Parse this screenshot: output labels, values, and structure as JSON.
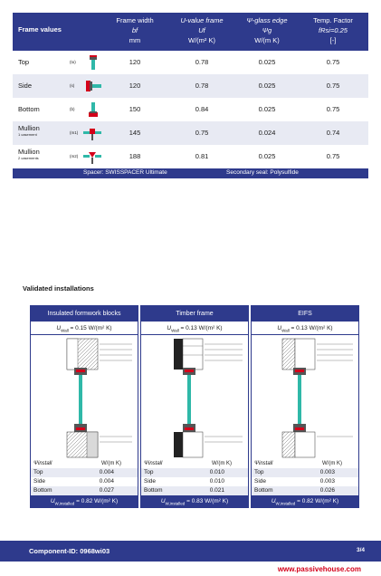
{
  "frame_table": {
    "header": {
      "label": "Frame values",
      "columns": [
        {
          "title": "Frame width",
          "symbol": "bf",
          "unit": "mm"
        },
        {
          "title": "U-value frame",
          "symbol": "Uf",
          "unit": "W/(m² K)"
        },
        {
          "title": "Ψ-glass edge",
          "symbol": "Ψg",
          "unit": "W/(m K)"
        },
        {
          "title": "Temp. Factor",
          "symbol": "fRsi=0.25",
          "unit": "[-]"
        }
      ]
    },
    "rows": [
      {
        "name": "Top",
        "code": "(to)",
        "width": "120",
        "uf": "0.78",
        "psi": "0.025",
        "temp": "0.75"
      },
      {
        "name": "Side",
        "code": "(s)",
        "width": "120",
        "uf": "0.78",
        "psi": "0.025",
        "temp": "0.75"
      },
      {
        "name": "Bottom",
        "code": "(b)",
        "width": "150",
        "uf": "0.84",
        "psi": "0.025",
        "temp": "0.75"
      },
      {
        "name": "Mullion",
        "sub": "1 casement",
        "code": "(m1)",
        "width": "145",
        "uf": "0.75",
        "psi": "0.024",
        "temp": "0.74"
      },
      {
        "name": "Mullion",
        "sub": "2 casements",
        "code": "(m2)",
        "width": "188",
        "uf": "0.81",
        "psi": "0.025",
        "temp": "0.75"
      }
    ],
    "footer": {
      "spacer": "Spacer: SWISSPACER Ultimate",
      "seal": "Secondary seal: Polysulfide"
    }
  },
  "validated": {
    "title": "Validated installations",
    "psi_label": "Ψinstall",
    "psi_unit": "W/(m K)",
    "panels": [
      {
        "title": "Insulated formwork blocks",
        "u_wall": "= 0.15 W/(m² K)",
        "rows": [
          {
            "label": "Top",
            "value": "0.004"
          },
          {
            "label": "Side",
            "value": "0.004"
          },
          {
            "label": "Bottom",
            "value": "0.027"
          }
        ],
        "uw": "= 0.82 W/(m² K)"
      },
      {
        "title": "Timber frame",
        "u_wall": "= 0.13 W/(m² K)",
        "rows": [
          {
            "label": "Top",
            "value": "0.010"
          },
          {
            "label": "Side",
            "value": "0.010"
          },
          {
            "label": "Bottom",
            "value": "0.021"
          }
        ],
        "uw": "= 0.83 W/(m² K)"
      },
      {
        "title": "EIFS",
        "u_wall": "= 0.13 W/(m² K)",
        "rows": [
          {
            "label": "Top",
            "value": "0.003"
          },
          {
            "label": "Side",
            "value": "0.003"
          },
          {
            "label": "Bottom",
            "value": "0.026"
          }
        ],
        "uw": "= 0.82 W/(m² K)"
      }
    ]
  },
  "footer": {
    "component_id": "Component-ID: 0968wi03",
    "page": "3/4",
    "website": "www.passivehouse.com"
  },
  "colors": {
    "brand_navy": "#2e3a8c",
    "row_alt": "#e8eaf3",
    "accent_red": "#d4001a",
    "glass_teal": "#2fb8a8"
  }
}
